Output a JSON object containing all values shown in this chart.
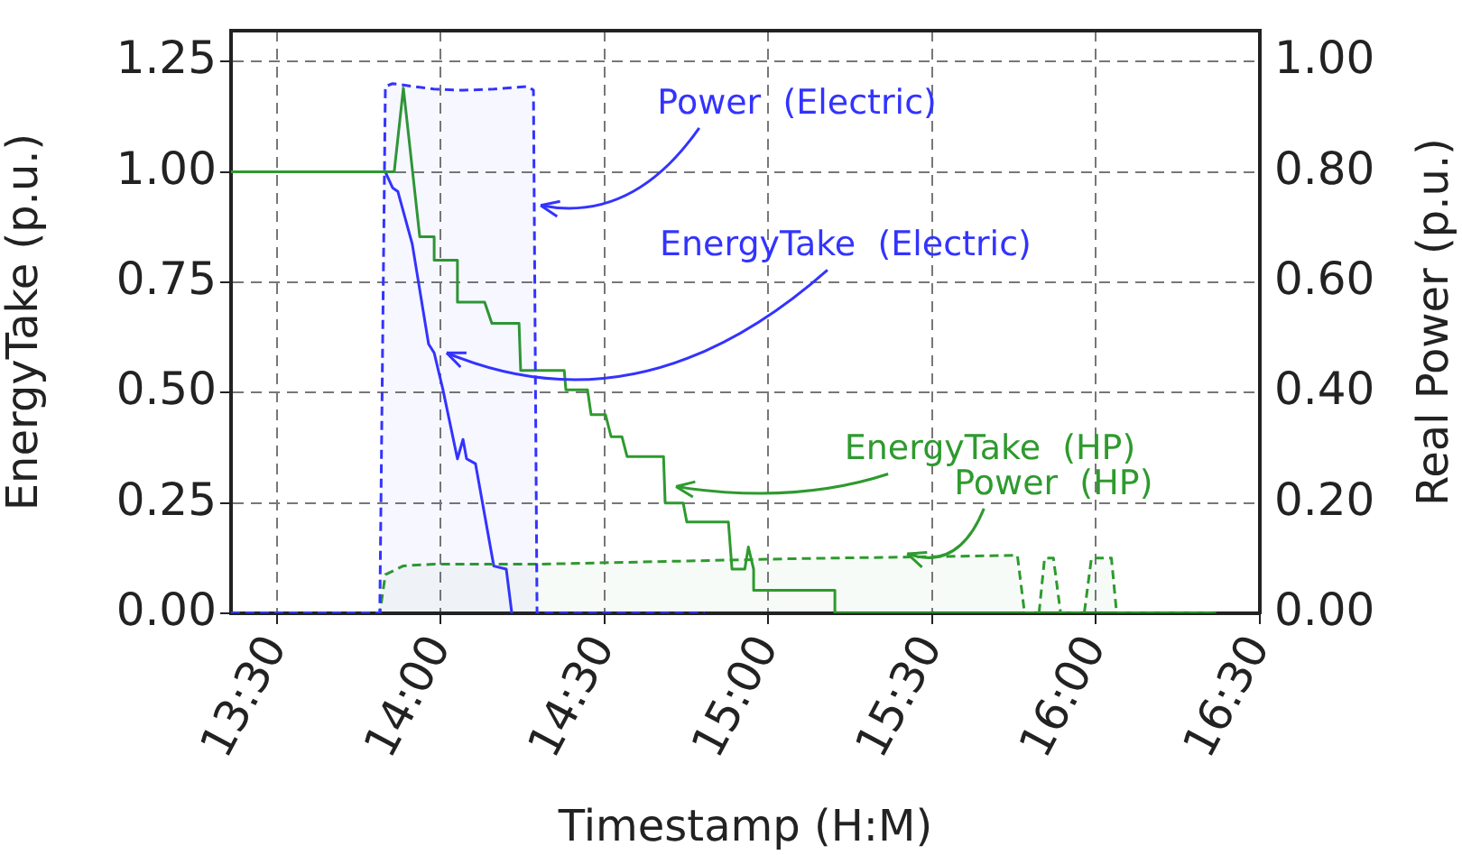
{
  "chart_data": {
    "type": "line",
    "xlabel": "Timestamp (H:M)",
    "ylabel": "EnergyTake (p.u.)",
    "y2label": "Real Power (p.u.)",
    "xlim": [
      13.36,
      16.5
    ],
    "xticks": [
      {
        "value": 13.5,
        "label": "13:30"
      },
      {
        "value": 14,
        "label": "14:00"
      },
      {
        "value": 14.5,
        "label": "14:30"
      },
      {
        "value": 15,
        "label": "15:00"
      },
      {
        "value": 15.5,
        "label": "15:30"
      },
      {
        "value": 16,
        "label": "16:00"
      },
      {
        "value": 16.5,
        "label": "16:30"
      }
    ],
    "ylim": [
      0,
      1.32
    ],
    "yticks": [
      {
        "value": 0,
        "label": "0.00"
      },
      {
        "value": 0.25,
        "label": "0.25"
      },
      {
        "value": 0.5,
        "label": "0.50"
      },
      {
        "value": 0.75,
        "label": "0.75"
      },
      {
        "value": 1,
        "label": "1.00"
      },
      {
        "value": 1.25,
        "label": "1.25"
      }
    ],
    "y2lim": [
      0,
      1.056
    ],
    "y2ticks": [
      {
        "value": 0,
        "label": "0.00"
      },
      {
        "value": 0.2,
        "label": "0.20"
      },
      {
        "value": 0.4,
        "label": "0.40"
      },
      {
        "value": 0.6,
        "label": "0.60"
      },
      {
        "value": 0.8,
        "label": "0.80"
      },
      {
        "value": 1,
        "label": "1.00"
      }
    ],
    "grid": true,
    "legend": false,
    "marker": "none",
    "series": [
      {
        "type": "area",
        "axis": "y2",
        "line_style": "dashed",
        "color": "#3333ff",
        "x": [
          13.36,
          13.814,
          13.831,
          13.853,
          13.98,
          14.068,
          14.162,
          14.266,
          14.283,
          14.294,
          14.806
        ],
        "values": [
          0,
          0,
          0.955,
          0.96,
          0.95,
          0.948,
          0.95,
          0.955,
          0.948,
          0,
          0
        ]
      },
      {
        "type": "area",
        "axis": "y2",
        "line_style": "dashed",
        "color": "#2e9a2e",
        "x": [
          13.36,
          13.814,
          13.831,
          13.886,
          13.98,
          14.294,
          15.082,
          15.76,
          15.782,
          15.826,
          15.843,
          15.87,
          15.892,
          15.964,
          15.986,
          16.047,
          16.063,
          16.367
        ],
        "values": [
          0,
          0,
          0.07,
          0.086,
          0.089,
          0.089,
          0.099,
          0.105,
          0,
          0,
          0.1,
          0.1,
          0,
          0,
          0.1,
          0.1,
          0,
          0
        ]
      },
      {
        "line_style": "solid",
        "color": "#2e9a2e",
        "x": [
          13.36,
          13.858,
          13.886,
          13.936,
          13.98,
          13.98,
          14.051,
          14.051,
          14.134,
          14.156,
          14.239,
          14.244,
          14.377,
          14.382,
          14.448,
          14.459,
          14.503,
          14.52,
          14.553,
          14.569,
          14.68,
          14.685,
          14.74,
          14.751,
          14.878,
          14.889,
          14.928,
          14.939,
          14.955,
          14.955,
          15.203,
          15.203,
          16.367
        ],
        "values": [
          1,
          1,
          1.19,
          0.853,
          0.853,
          0.8,
          0.8,
          0.705,
          0.705,
          0.657,
          0.657,
          0.55,
          0.55,
          0.506,
          0.506,
          0.45,
          0.45,
          0.4,
          0.4,
          0.355,
          0.355,
          0.25,
          0.25,
          0.207,
          0.207,
          0.1,
          0.1,
          0.15,
          0.1,
          0.052,
          0.052,
          0,
          0
        ]
      },
      {
        "line_style": "solid",
        "color": "#3333ff",
        "x": [
          13.831,
          13.853,
          13.869,
          13.913,
          13.963,
          13.98,
          14.007,
          14.051,
          14.068,
          14.079,
          14.106,
          14.162,
          14.2,
          14.217
        ],
        "values": [
          1,
          0.964,
          0.956,
          0.837,
          0.61,
          0.59,
          0.506,
          0.35,
          0.394,
          0.35,
          0.339,
          0.107,
          0.1,
          0
        ]
      }
    ],
    "annotations": [
      {
        "text": "Power  (Electric)",
        "x": 14.294,
        "y": 0.924
      },
      {
        "text": "EnergyTake  (Electric)",
        "x": 14.007,
        "y": 0.59
      },
      {
        "text": "EnergyTake  (HP)",
        "x": 14.707,
        "y": 0.287
      },
      {
        "text": "Power  (HP)",
        "x": 15.413,
        "y": 0.135
      }
    ]
  }
}
